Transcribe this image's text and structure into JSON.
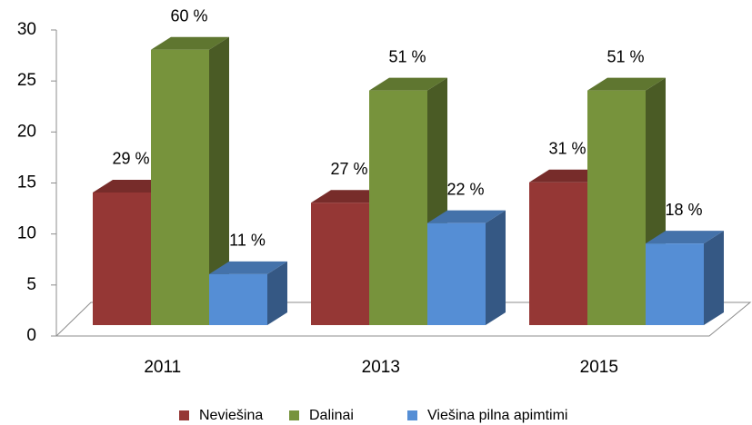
{
  "chart_data": {
    "type": "bar3d",
    "categories": [
      "2011",
      "2013",
      "2015"
    ],
    "series": [
      {
        "name": "Neviešina",
        "color": "#953735",
        "values": [
          13,
          12,
          14
        ],
        "percent_labels": [
          "29 %",
          "27 %",
          "31 %"
        ]
      },
      {
        "name": "Dalinai",
        "color": "#77933c",
        "values": [
          27,
          23,
          23
        ],
        "percent_labels": [
          "60 %",
          "51 %",
          "51 %"
        ]
      },
      {
        "name": "Viešina pilna apimtimi",
        "color": "#558ed5",
        "values": [
          5,
          10,
          8
        ],
        "percent_labels": [
          "11 %",
          "22 %",
          "18 %"
        ]
      }
    ],
    "ylim": [
      0,
      30
    ],
    "yticks": [
      0,
      5,
      10,
      15,
      20,
      25,
      30
    ],
    "grid": false,
    "legend": "bottom"
  }
}
